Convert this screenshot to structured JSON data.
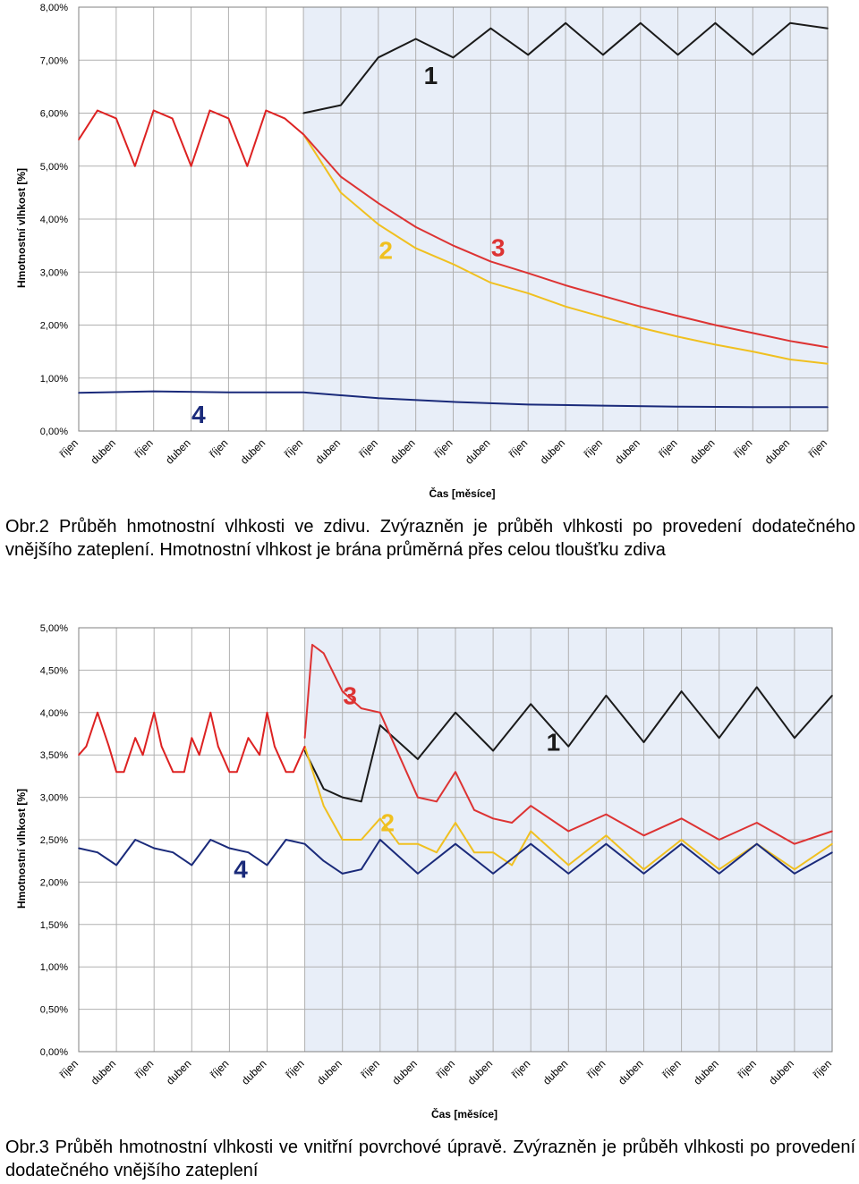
{
  "chart_data": [
    {
      "id": "chart1",
      "type": "line",
      "ylabel": "Hmotnostní vlhkost [%]",
      "xlabel": "Čas [měsíce]",
      "ylim": [
        0,
        8
      ],
      "yticks": [
        "0,00%",
        "1,00%",
        "2,00%",
        "3,00%",
        "4,00%",
        "5,00%",
        "6,00%",
        "7,00%",
        "8,00%"
      ],
      "xticks": [
        "říjen",
        "duben",
        "říjen",
        "duben",
        "říjen",
        "duben",
        "říjen",
        "duben",
        "říjen",
        "duben",
        "říjen",
        "duben",
        "říjen",
        "duben",
        "říjen",
        "duben",
        "říjen",
        "duben",
        "říjen",
        "duben",
        "říjen"
      ],
      "xlim": [
        0,
        10
      ],
      "highlight_from": 3,
      "grid": true,
      "series": [
        {
          "name": "1",
          "color": "#1a1a1a",
          "label_at": [
            4.7,
            6.55
          ],
          "x": [
            3.0,
            3.5,
            4.0,
            4.5,
            5.0,
            5.5,
            6.0,
            6.5,
            7.0,
            7.5,
            8.0,
            8.5,
            9.0,
            9.5,
            10.0
          ],
          "y": [
            6.0,
            6.15,
            7.05,
            7.4,
            7.05,
            7.6,
            7.1,
            7.7,
            7.1,
            7.7,
            7.1,
            7.7,
            7.1,
            7.7,
            7.6
          ]
        },
        {
          "name": "2",
          "color": "#f0c020",
          "label_at": [
            4.1,
            3.25
          ],
          "x": [
            3.0,
            3.5,
            4.0,
            4.5,
            5.0,
            5.5,
            6.0,
            6.5,
            7.0,
            7.5,
            8.0,
            8.5,
            9.0,
            9.5,
            10.0
          ],
          "y": [
            5.6,
            4.5,
            3.9,
            3.45,
            3.15,
            2.8,
            2.6,
            2.35,
            2.15,
            1.95,
            1.78,
            1.63,
            1.5,
            1.35,
            1.27
          ]
        },
        {
          "name": "3",
          "color": "#dd3333",
          "label_at": [
            5.6,
            3.3
          ],
          "x": [
            3.0,
            3.5,
            4.0,
            4.5,
            5.0,
            5.5,
            6.0,
            6.5,
            7.0,
            7.5,
            8.0,
            8.5,
            9.0,
            9.5,
            10.0
          ],
          "y": [
            5.6,
            4.8,
            4.3,
            3.85,
            3.5,
            3.2,
            2.98,
            2.75,
            2.55,
            2.35,
            2.17,
            2.0,
            1.85,
            1.7,
            1.58
          ]
        },
        {
          "name": "4",
          "color": "#1a2a7a",
          "label_at": [
            1.6,
            0.15
          ],
          "x": [
            0,
            1,
            2,
            3,
            4,
            5,
            6,
            7,
            8,
            9,
            10
          ],
          "y": [
            0.72,
            0.75,
            0.73,
            0.73,
            0.62,
            0.55,
            0.5,
            0.48,
            0.46,
            0.45,
            0.45
          ]
        },
        {
          "name": "",
          "color": "#dd2222",
          "label_at": null,
          "x": [
            0,
            0.25,
            0.5,
            0.75,
            1.0,
            1.25,
            1.5,
            1.75,
            2.0,
            2.25,
            2.5,
            2.75,
            3.0
          ],
          "y": [
            5.5,
            6.05,
            5.9,
            5.0,
            6.05,
            5.9,
            5.0,
            6.05,
            5.9,
            5.0,
            6.05,
            5.9,
            5.6
          ]
        }
      ]
    },
    {
      "id": "chart2",
      "type": "line",
      "ylabel": "Hmotnostní vlhkost [%]",
      "xlabel": "Čas [měsíce]",
      "ylim": [
        0,
        5
      ],
      "yticks": [
        "0,00%",
        "0,50%",
        "1,00%",
        "1,50%",
        "2,00%",
        "2,50%",
        "3,00%",
        "3,50%",
        "4,00%",
        "4,50%",
        "5,00%"
      ],
      "xticks": [
        "říjen",
        "duben",
        "říjen",
        "duben",
        "říjen",
        "duben",
        "říjen",
        "duben",
        "říjen",
        "duben",
        "říjen",
        "duben",
        "říjen",
        "duben",
        "říjen",
        "duben",
        "říjen",
        "duben",
        "říjen",
        "duben",
        "říjen"
      ],
      "xlim": [
        0,
        10
      ],
      "highlight_from": 3,
      "grid": true,
      "series": [
        {
          "name": "1",
          "color": "#1a1a1a",
          "label_at": [
            6.3,
            3.55
          ],
          "x": [
            3.0,
            3.25,
            3.5,
            3.75,
            4.0,
            4.5,
            5.0,
            5.5,
            6.0,
            6.5,
            7.0,
            7.5,
            8.0,
            8.5,
            9.0,
            9.5,
            10.0
          ],
          "y": [
            3.55,
            3.1,
            3.0,
            2.95,
            3.85,
            3.45,
            4.0,
            3.55,
            4.1,
            3.6,
            4.2,
            3.65,
            4.25,
            3.7,
            4.3,
            3.7,
            4.2
          ]
        },
        {
          "name": "2",
          "color": "#f0c020",
          "label_at": [
            4.1,
            2.6
          ],
          "x": [
            3.0,
            3.25,
            3.5,
            3.75,
            4.0,
            4.25,
            4.5,
            4.75,
            5.0,
            5.25,
            5.5,
            5.75,
            6.0,
            6.5,
            7.0,
            7.5,
            8.0,
            8.5,
            9.0,
            9.5,
            10.0
          ],
          "y": [
            3.6,
            2.9,
            2.5,
            2.5,
            2.75,
            2.45,
            2.45,
            2.35,
            2.7,
            2.35,
            2.35,
            2.2,
            2.6,
            2.2,
            2.55,
            2.15,
            2.5,
            2.15,
            2.45,
            2.15,
            2.45
          ]
        },
        {
          "name": "3",
          "color": "#dd3333",
          "label_at": [
            3.6,
            4.1
          ],
          "x": [
            3.0,
            3.1,
            3.25,
            3.5,
            3.75,
            4.0,
            4.25,
            4.5,
            4.75,
            5.0,
            5.25,
            5.5,
            5.75,
            6.0,
            6.5,
            7.0,
            7.5,
            8.0,
            8.5,
            9.0,
            9.5,
            10.0
          ],
          "y": [
            3.7,
            4.8,
            4.7,
            4.25,
            4.05,
            4.0,
            3.5,
            3.0,
            2.95,
            3.3,
            2.85,
            2.75,
            2.7,
            2.9,
            2.6,
            2.8,
            2.55,
            2.75,
            2.5,
            2.7,
            2.45,
            2.6
          ]
        },
        {
          "name": "4",
          "color": "#1a2a7a",
          "label_at": [
            2.15,
            2.05
          ],
          "x": [
            0,
            0.25,
            0.5,
            0.75,
            1.0,
            1.25,
            1.5,
            1.75,
            2.0,
            2.25,
            2.5,
            2.75,
            3.0,
            3.25,
            3.5,
            3.75,
            4.0,
            4.5,
            5.0,
            5.5,
            6.0,
            6.5,
            7.0,
            7.5,
            8.0,
            8.5,
            9.0,
            9.5,
            10.0
          ],
          "y": [
            2.4,
            2.35,
            2.2,
            2.5,
            2.4,
            2.35,
            2.2,
            2.5,
            2.4,
            2.35,
            2.2,
            2.5,
            2.45,
            2.25,
            2.1,
            2.15,
            2.5,
            2.1,
            2.45,
            2.1,
            2.45,
            2.1,
            2.45,
            2.1,
            2.45,
            2.1,
            2.45,
            2.1,
            2.35
          ]
        },
        {
          "name": "",
          "color": "#dd2222",
          "label_at": null,
          "x": [
            0,
            0.1,
            0.25,
            0.4,
            0.5,
            0.6,
            0.75,
            0.85,
            1.0,
            1.1,
            1.25,
            1.4,
            1.5,
            1.6,
            1.75,
            1.85,
            2.0,
            2.1,
            2.25,
            2.4,
            2.5,
            2.6,
            2.75,
            2.85,
            3.0
          ],
          "y": [
            3.5,
            3.6,
            4.0,
            3.6,
            3.3,
            3.3,
            3.7,
            3.5,
            4.0,
            3.6,
            3.3,
            3.3,
            3.7,
            3.5,
            4.0,
            3.6,
            3.3,
            3.3,
            3.7,
            3.5,
            4.0,
            3.6,
            3.3,
            3.3,
            3.6
          ]
        }
      ]
    }
  ],
  "captions": {
    "caption1": "Obr.2  Průběh hmotnostní vlhkosti ve zdivu. Zvýrazněn je průběh vlhkosti po provedení dodatečného vnějšího zateplení. Hmotnostní vlhkost je brána průměrná přes celou tloušťku zdiva",
    "caption2": "Obr.3  Průběh hmotnostní vlhkosti ve vnitřní povrchové úpravě. Zvýrazněn je průběh vlhkosti po provedení dodatečného vnějšího zateplení"
  },
  "colors": {
    "highlight_bg": "#e8eef8",
    "grid": "#b0b0b0"
  }
}
